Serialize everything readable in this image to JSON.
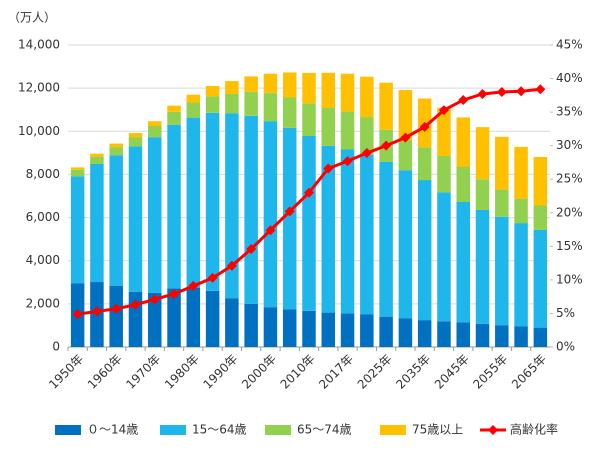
{
  "chart_data": {
    "type": "bar",
    "stacked": true,
    "y_label": "（万人）",
    "categories": [
      "1950年",
      null,
      "1960年",
      null,
      "1970年",
      null,
      "1980年",
      null,
      "1990年",
      null,
      "2000年",
      null,
      "2010年",
      null,
      "2017年",
      null,
      "2025年",
      null,
      "2035年",
      null,
      "2045年",
      null,
      "2055年",
      null,
      "2065年"
    ],
    "series": [
      {
        "name": "０～14歳",
        "color": "#0070c0",
        "values": [
          2943,
          3012,
          2843,
          2553,
          2515,
          2722,
          2751,
          2603,
          2249,
          2001,
          1847,
          1752,
          1680,
          1595,
          1559,
          1507,
          1407,
          1321,
          1246,
          1194,
          1138,
          1077,
          1012,
          951,
          898
        ]
      },
      {
        "name": "15～64歳",
        "color": "#1fb6ec",
        "values": [
          4966,
          5473,
          6047,
          6744,
          7212,
          7581,
          7883,
          8251,
          8590,
          8716,
          8622,
          8409,
          8103,
          7728,
          7596,
          7406,
          7170,
          6875,
          6494,
          5978,
          5584,
          5275,
          5028,
          4793,
          4529
        ]
      },
      {
        "name": "65～74歳",
        "color": "#92d050",
        "values": [
          309,
          338,
          376,
          434,
          516,
          602,
          699,
          773,
          892,
          1109,
          1301,
          1407,
          1517,
          1755,
          1767,
          1747,
          1497,
          1428,
          1522,
          1681,
          1643,
          1424,
          1258,
          1133,
          1133
        ]
      },
      {
        "name": "75歳以上",
        "color": "#ffc000",
        "values": [
          107,
          139,
          164,
          189,
          224,
          284,
          366,
          471,
          597,
          717,
          900,
          1160,
          1407,
          1632,
          1748,
          1872,
          2180,
          2288,
          2260,
          2239,
          2277,
          2417,
          2446,
          2403,
          2248
        ]
      },
      {
        "name": "高齢化率",
        "color": "#ff0000",
        "type": "line",
        "axis": "y2",
        "values": [
          4.9,
          5.3,
          5.7,
          6.3,
          7.1,
          7.9,
          9.1,
          10.3,
          12.1,
          14.6,
          17.4,
          20.2,
          23.0,
          26.6,
          27.7,
          28.9,
          30.0,
          31.2,
          32.8,
          35.3,
          36.8,
          37.7,
          38.0,
          38.1,
          38.4
        ]
      }
    ],
    "ylim": [
      0,
      14000
    ],
    "yticks": [
      0,
      {
        "value": 2000,
        "label": "2,000"
      },
      {
        "value": 4000,
        "label": "4,000"
      },
      {
        "value": 6000,
        "label": "6,000"
      },
      {
        "value": 8000,
        "label": "8,000"
      },
      {
        "value": 10000,
        "label": "10,000"
      },
      {
        "value": 12000,
        "label": "12,000"
      },
      {
        "value": 14000,
        "label": "14,000"
      }
    ],
    "y2lim": [
      0,
      45
    ],
    "y2ticks": [
      {
        "value": 0,
        "label": "0%"
      },
      {
        "value": 5,
        "label": "5%"
      },
      {
        "value": 10,
        "label": "10%"
      },
      {
        "value": 15,
        "label": "15%"
      },
      {
        "value": 20,
        "label": "20%"
      },
      {
        "value": 25,
        "label": "25%"
      },
      {
        "value": 30,
        "label": "30%"
      },
      {
        "value": 35,
        "label": "35%"
      },
      {
        "value": 40,
        "label": "40%"
      },
      {
        "value": 45,
        "label": "45%"
      }
    ],
    "grid": true,
    "legend": "bottom"
  }
}
